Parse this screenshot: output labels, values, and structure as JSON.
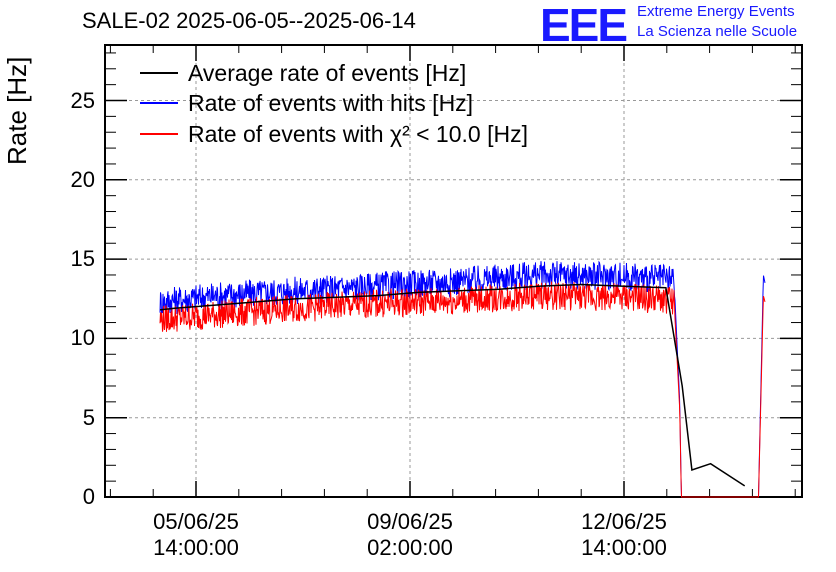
{
  "header": {
    "title": "SALE-02 2025-06-05--2025-06-14",
    "logo": "EEE",
    "logo_line1": "Extreme Energy Events",
    "logo_line2": "La Scienza nelle Scuole"
  },
  "chart_data": {
    "type": "line",
    "title": "SALE-02 2025-06-05--2025-06-14",
    "ylabel": "Rate [Hz]",
    "xlabel": "",
    "ylim": [
      0,
      28.5
    ],
    "yticks": [
      0,
      5,
      10,
      15,
      20,
      25
    ],
    "x_tick_labels": [
      {
        "date": "05/06/25",
        "time": "14:00:00"
      },
      {
        "date": "09/06/25",
        "time": "02:00:00"
      },
      {
        "date": "12/06/25",
        "time": "14:00:00"
      }
    ],
    "grid": true,
    "legend_position": "top-left",
    "series": [
      {
        "name": "Average rate of events [Hz]",
        "color": "#000000",
        "points": [
          [
            0.32,
            11.8
          ],
          [
            0.5,
            11.9
          ],
          [
            1.0,
            12.1
          ],
          [
            1.5,
            12.3
          ],
          [
            2.0,
            12.5
          ],
          [
            2.5,
            12.6
          ],
          [
            3.0,
            12.7
          ],
          [
            3.5,
            12.9
          ],
          [
            4.0,
            13.0
          ],
          [
            4.5,
            13.1
          ],
          [
            5.0,
            13.3
          ],
          [
            5.5,
            13.4
          ],
          [
            6.0,
            13.3
          ],
          [
            6.55,
            13.2
          ],
          [
            6.75,
            7.0
          ],
          [
            6.87,
            1.7
          ],
          [
            7.1,
            2.1
          ],
          [
            7.52,
            0.7
          ]
        ]
      },
      {
        "name": "Rate of events with hits [Hz]",
        "color": "#0000ff",
        "points": [
          [
            0.32,
            12.3
          ],
          [
            1.0,
            12.7
          ],
          [
            2.0,
            13.0
          ],
          [
            3.0,
            13.3
          ],
          [
            4.0,
            13.6
          ],
          [
            5.0,
            14.0
          ],
          [
            6.0,
            13.9
          ],
          [
            6.65,
            13.7
          ],
          [
            6.72,
            6.0
          ],
          [
            6.74,
            0.0
          ],
          [
            7.69,
            0.0
          ],
          [
            7.75,
            14.0
          ],
          [
            7.77,
            13.5
          ]
        ]
      },
      {
        "name": "Rate of events with χ² < 10.0 [Hz]",
        "color": "#ff0000",
        "points": [
          [
            0.32,
            11.2
          ],
          [
            1.0,
            11.5
          ],
          [
            2.0,
            11.9
          ],
          [
            3.0,
            12.2
          ],
          [
            4.0,
            12.4
          ],
          [
            5.0,
            12.7
          ],
          [
            6.0,
            12.6
          ],
          [
            6.65,
            12.4
          ],
          [
            6.72,
            5.5
          ],
          [
            6.74,
            0.0
          ],
          [
            7.69,
            0.0
          ],
          [
            7.75,
            12.7
          ],
          [
            7.77,
            12.3
          ]
        ]
      }
    ]
  }
}
